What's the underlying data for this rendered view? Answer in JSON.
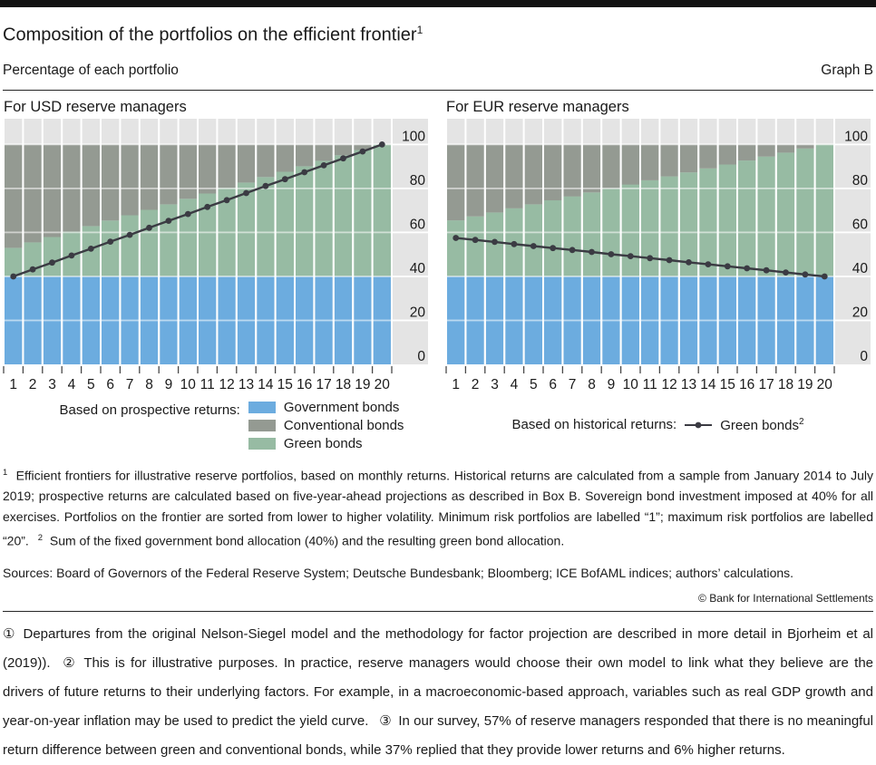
{
  "header": {
    "title": "Composition of the portfolios on the efficient frontier",
    "title_sup": "1",
    "subtitle": "Percentage of each portfolio",
    "graph_label": "Graph B"
  },
  "colors": {
    "government": "#6cacdf",
    "conventional": "#949a92",
    "green": "#97bba3",
    "line": "#3b3b43",
    "plot_background": "#e4e4e4",
    "grid": "#ffffff",
    "text": "#1a1a1a"
  },
  "chart_data": [
    {
      "type": "bar",
      "stacked": true,
      "title": "For USD reserve managers",
      "categories": [
        1,
        2,
        3,
        4,
        5,
        6,
        7,
        8,
        9,
        10,
        11,
        12,
        13,
        14,
        15,
        16,
        17,
        18,
        19,
        20
      ],
      "xlabel": "",
      "ylabel": "",
      "ylim": [
        0,
        111.7
      ],
      "yticks": [
        0,
        20,
        40,
        60,
        80,
        100
      ],
      "grid": true,
      "series": [
        {
          "name": "Government bonds",
          "color": "#6cacdf",
          "values": [
            40,
            40,
            40,
            40,
            40,
            40,
            40,
            40,
            40,
            40,
            40,
            40,
            40,
            40,
            40,
            40,
            40,
            40,
            40,
            40
          ]
        },
        {
          "name": "Green bonds",
          "color": "#97bba3",
          "values": [
            13,
            15.5,
            17.9,
            20.4,
            22.9,
            25.4,
            27.8,
            30.3,
            32.8,
            35.3,
            37.7,
            40.2,
            42.7,
            45.2,
            47.6,
            50.1,
            52.6,
            55.1,
            57.5,
            60
          ]
        },
        {
          "name": "Conventional bonds",
          "color": "#949a92",
          "values": [
            47,
            44.5,
            42.1,
            39.6,
            37.1,
            34.6,
            32.2,
            29.7,
            27.2,
            24.7,
            22.3,
            19.8,
            17.3,
            14.8,
            12.4,
            9.9,
            7.4,
            4.9,
            2.5,
            0
          ]
        }
      ],
      "line": {
        "name": "Green bonds (based on historical returns)",
        "color": "#3b3b43",
        "values": [
          40,
          43.2,
          46.3,
          49.5,
          52.6,
          55.8,
          58.9,
          62.1,
          65.3,
          68.4,
          71.6,
          74.7,
          77.9,
          81.1,
          84.2,
          87.4,
          90.5,
          93.7,
          96.8,
          100
        ]
      }
    },
    {
      "type": "bar",
      "stacked": true,
      "title": "For EUR reserve managers",
      "categories": [
        1,
        2,
        3,
        4,
        5,
        6,
        7,
        8,
        9,
        10,
        11,
        12,
        13,
        14,
        15,
        16,
        17,
        18,
        19,
        20
      ],
      "xlabel": "",
      "ylabel": "",
      "ylim": [
        0,
        111.7
      ],
      "yticks": [
        0,
        20,
        40,
        60,
        80,
        100
      ],
      "grid": true,
      "series": [
        {
          "name": "Government bonds",
          "color": "#6cacdf",
          "values": [
            40,
            40,
            40,
            40,
            40,
            40,
            40,
            40,
            40,
            40,
            40,
            40,
            40,
            40,
            40,
            40,
            40,
            40,
            40,
            40
          ]
        },
        {
          "name": "Green bonds",
          "color": "#97bba3",
          "values": [
            25.5,
            27.3,
            29.1,
            31,
            32.8,
            34.6,
            36.4,
            38.2,
            40,
            41.8,
            43.7,
            45.5,
            47.3,
            49.1,
            50.9,
            52.7,
            54.5,
            56.3,
            58.2,
            60
          ]
        },
        {
          "name": "Conventional bonds",
          "color": "#949a92",
          "values": [
            34.5,
            32.7,
            30.9,
            29,
            27.2,
            25.4,
            23.6,
            21.8,
            20,
            18.2,
            16.3,
            14.5,
            12.7,
            10.9,
            9.1,
            7.3,
            5.5,
            3.7,
            1.8,
            0
          ]
        }
      ],
      "line": {
        "name": "Green bonds (based on historical returns)",
        "color": "#3b3b43",
        "values": [
          57.5,
          56.6,
          55.7,
          54.7,
          53.8,
          52.9,
          52,
          51.1,
          50.1,
          49.2,
          48.3,
          47.4,
          46.4,
          45.5,
          44.6,
          43.7,
          42.8,
          41.8,
          40.9,
          40
        ]
      }
    }
  ],
  "legend_left": {
    "caption": "Based on prospective returns:",
    "items": [
      {
        "label": "Government bonds",
        "color": "#6cacdf"
      },
      {
        "label": "Conventional bonds",
        "color": "#949a92"
      },
      {
        "label": "Green bonds",
        "color": "#97bba3"
      }
    ]
  },
  "legend_right": {
    "caption": "Based on historical returns:",
    "item_label": "Green bonds",
    "item_sup": "2",
    "line_color": "#3b3b43"
  },
  "footnotes": {
    "fn1_marker": "1",
    "fn1_text": "Efficient frontiers for illustrative reserve portfolios, based on monthly returns. Historical returns are calculated from a sample from January 2014 to July 2019; prospective returns are calculated based on five-year-ahead projections as described in Box B. Sovereign bond investment imposed at 40% for all exercises. Portfolios on the frontier are sorted from lower to higher volatility. Minimum risk portfolios are labelled “1”; maximum risk portfolios are labelled “20”.",
    "fn2_marker": "2",
    "fn2_text": "Sum of the fixed government bond allocation (40%) and the resulting green bond allocation."
  },
  "sources": "Sources: Board of Governors of the Federal Reserve System; Deutsche Bundesbank; Bloomberg; ICE BofAML indices; authors’ calculations.",
  "copyright": "© Bank for International Settlements",
  "bottom_note": "① Departures from the original Nelson-Siegel model and the methodology for factor projection are described in more detail in Bjorheim et al (2019)).  ② This is for illustrative purposes. In practice, reserve managers would choose their own model to link what they believe are the drivers of future returns to their underlying factors. For example, in a macroeconomic-based approach, variables such as real GDP growth and year-on-year inflation may be used to predict the yield curve.  ③ In our survey, 57% of reserve managers responded that there is no meaningful return difference between green and conventional bonds, while 37% replied that they provide lower returns and 6% higher returns."
}
